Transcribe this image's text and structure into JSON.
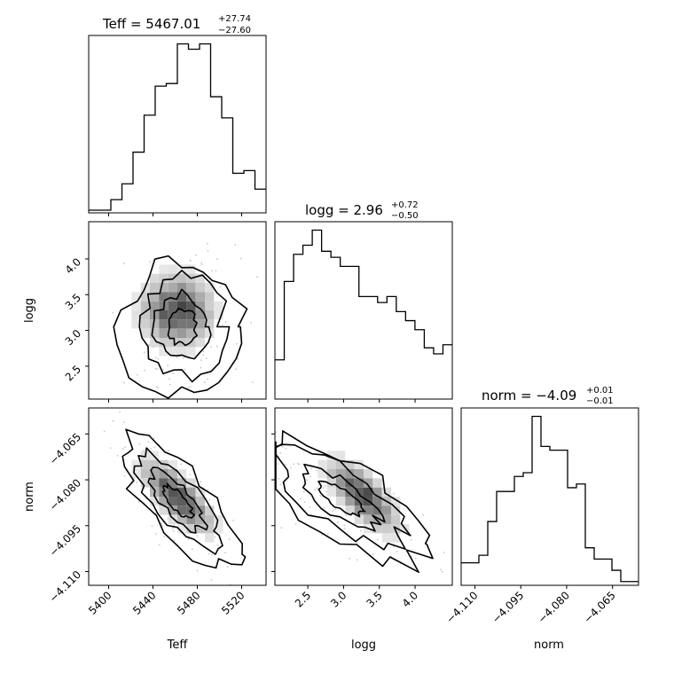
{
  "chart_data": {
    "type": "corner",
    "parameters": [
      "Teff",
      "logg",
      "norm"
    ],
    "titles": [
      {
        "param": "Teff",
        "prefix": "Teff = ",
        "value": "5467.01",
        "plus": "+27.74",
        "minus": "−27.60"
      },
      {
        "param": "logg",
        "prefix": "logg = ",
        "value": "2.96",
        "plus": "+0.72",
        "minus": "−0.50"
      },
      {
        "param": "norm",
        "prefix": "norm = ",
        "value": "−4.09",
        "plus": "+0.01",
        "minus": "−0.01"
      }
    ],
    "axis_labels": {
      "x": [
        "Teff",
        "logg",
        "norm"
      ],
      "y": [
        "logg",
        "norm"
      ]
    },
    "ranges": {
      "Teff": [
        5382,
        5542
      ],
      "logg": [
        2.04,
        4.52
      ],
      "norm": [
        -4.1145,
        -4.0565
      ]
    },
    "ticks": {
      "Teff": {
        "values": [
          5400,
          5440,
          5480,
          5520
        ],
        "labels": [
          "5400",
          "5440",
          "5480",
          "5520"
        ]
      },
      "logg": {
        "values": [
          2.5,
          3.0,
          3.5,
          4.0
        ],
        "labels": [
          "2.5",
          "3.0",
          "3.5",
          "4.0"
        ]
      },
      "norm": {
        "values": [
          -4.11,
          -4.095,
          -4.08,
          -4.065
        ],
        "labels": [
          "−4.110",
          "−4.095",
          "−4.080",
          "−4.065"
        ]
      }
    },
    "histograms": [
      {
        "param": "Teff",
        "counts": [
          1,
          1,
          5,
          11,
          23,
          37,
          48,
          49,
          64,
          62,
          64,
          44,
          36,
          15,
          16,
          9
        ]
      },
      {
        "param": "logg",
        "counts": [
          13,
          39,
          48,
          51,
          56,
          49,
          47,
          44,
          44,
          34,
          34,
          32,
          34,
          29,
          26,
          23,
          17,
          15,
          18
        ]
      },
      {
        "param": "norm",
        "counts": [
          6,
          6,
          8,
          17,
          25,
          25,
          29,
          30,
          45,
          37,
          36,
          36,
          26,
          27,
          10,
          7,
          7,
          4,
          1,
          1
        ]
      }
    ],
    "grid": false
  }
}
